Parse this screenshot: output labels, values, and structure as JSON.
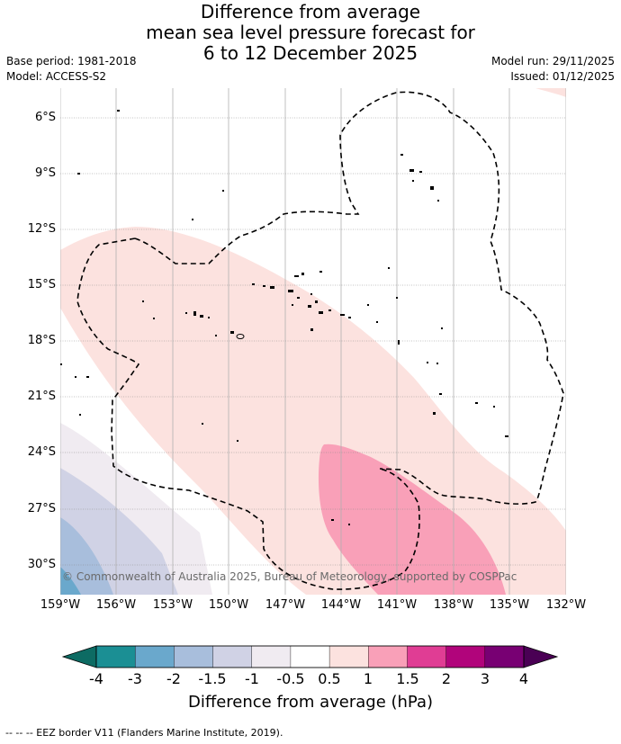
{
  "title": {
    "line1": "Difference from average",
    "line2": "mean sea level pressure forecast for",
    "line3": "6 to 12 December 2025"
  },
  "meta": {
    "base_period": "Base period: 1981-2018",
    "model": "Model: ACCESS-S2",
    "model_run": "Model run: 29/11/2025",
    "issued": "Issued: 01/12/2025"
  },
  "map": {
    "latitudes": [
      "6°S",
      "9°S",
      "12°S",
      "15°S",
      "18°S",
      "21°S",
      "24°S",
      "27°S",
      "30°S"
    ],
    "longitudes": [
      "159°W",
      "156°W",
      "153°W",
      "150°W",
      "147°W",
      "144°W",
      "141°W",
      "138°W",
      "135°W",
      "132°W"
    ],
    "copyright": "© Commonwealth of Australia 2025, Bureau of Meteorology, supported by COSPPac"
  },
  "colorbar": {
    "ticks": [
      "-4",
      "-3",
      "-2",
      "-1.5",
      "-1",
      "-0.5",
      "0.5",
      "1",
      "1.5",
      "2",
      "3",
      "4"
    ],
    "colors": [
      "#1b8f94",
      "#6aa8cc",
      "#a8bedc",
      "#d0d2e5",
      "#f0ebf1",
      "#ffffff",
      "#fce2df",
      "#f9a0b8",
      "#e03d94",
      "#b1047b",
      "#780073"
    ],
    "under_color": "#0d6b63",
    "over_color": "#4a0054",
    "title": "Difference from average (hPa)"
  },
  "footnote": "--  --  -- EEZ border V11 (Flanders Marine Institute, 2019)."
}
